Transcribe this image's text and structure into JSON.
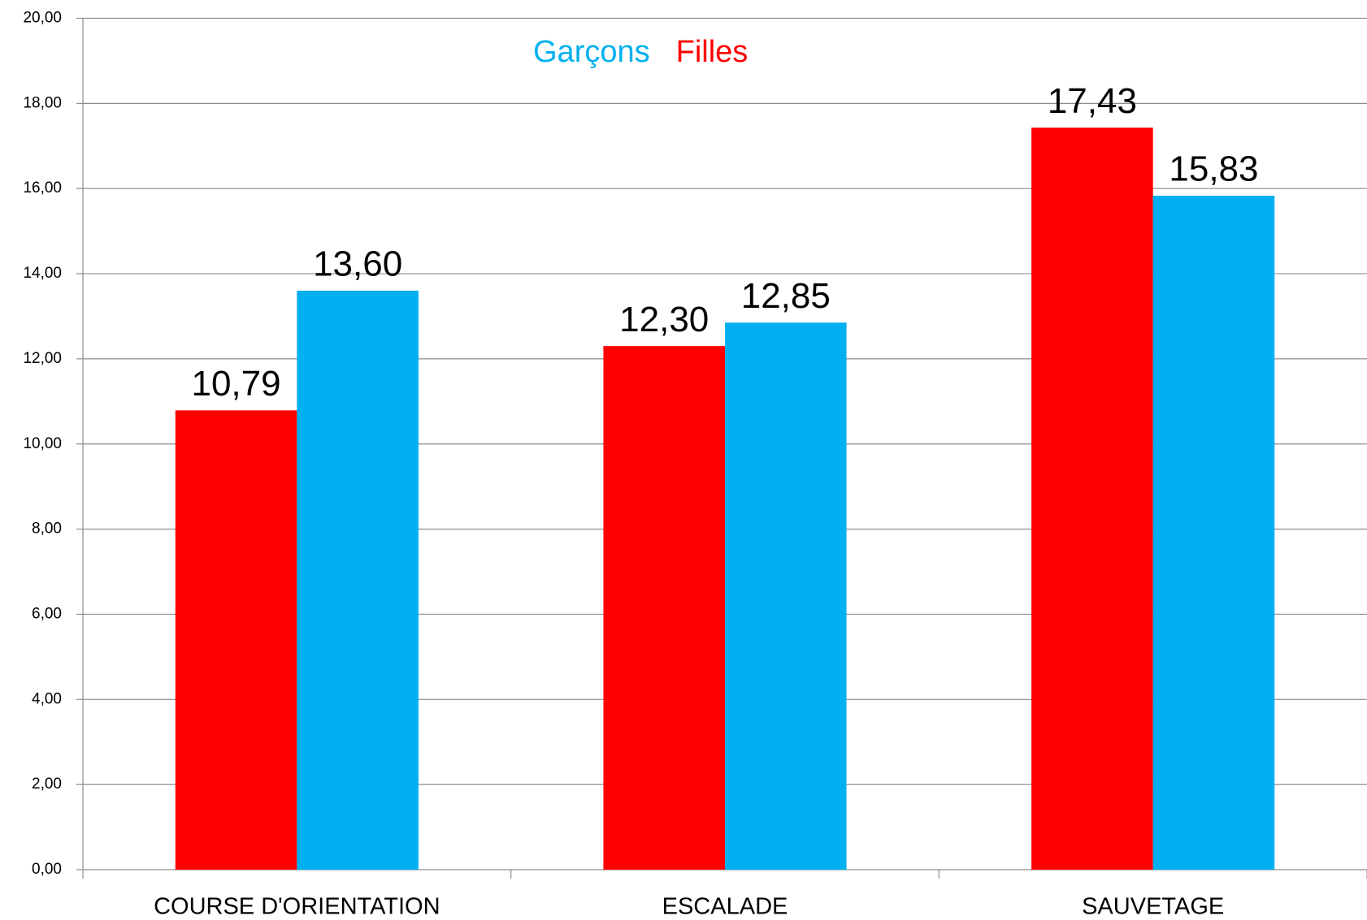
{
  "chart_data": {
    "type": "bar",
    "categories": [
      "COURSE D'ORIENTATION",
      "ESCALADE",
      "SAUVETAGE"
    ],
    "series": [
      {
        "name": "Filles",
        "color": "#ff0000",
        "values": [
          10.79,
          12.3,
          17.43
        ],
        "value_labels": [
          "10,79",
          "12,30",
          "17,43"
        ]
      },
      {
        "name": "Garçons",
        "color": "#00b0f0",
        "values": [
          13.6,
          12.85,
          15.83
        ],
        "value_labels": [
          "13,60",
          "12,85",
          "15,83"
        ]
      }
    ],
    "ylim": [
      0,
      20
    ],
    "yticks": [
      {
        "value": 0,
        "label": "0,00"
      },
      {
        "value": 2,
        "label": "2,00"
      },
      {
        "value": 4,
        "label": "4,00"
      },
      {
        "value": 6,
        "label": "6,00"
      },
      {
        "value": 8,
        "label": "8,00"
      },
      {
        "value": 10,
        "label": "10,00"
      },
      {
        "value": 12,
        "label": "12,00"
      },
      {
        "value": 14,
        "label": "14,00"
      },
      {
        "value": 16,
        "label": "16,00"
      },
      {
        "value": 18,
        "label": "18,00"
      },
      {
        "value": 20,
        "label": "20,00"
      }
    ],
    "grid": true,
    "legend": "top"
  }
}
